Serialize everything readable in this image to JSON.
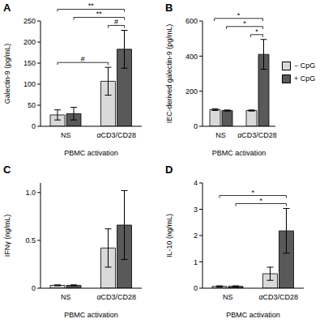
{
  "chart_data": [
    {
      "type": "bar",
      "title": "A",
      "x_label": "PBMC activation",
      "y_label": "Galectin-9 (pg/mL)",
      "categories": [
        "NS",
        "αCD3/CD28"
      ],
      "series": [
        {
          "name": "− CpG",
          "color": "#d9d9d9",
          "values": [
            27,
            107
          ],
          "errors": [
            12,
            33
          ]
        },
        {
          "name": "+ CpG",
          "color": "#595959",
          "values": [
            30,
            183
          ],
          "errors": [
            15,
            45
          ]
        }
      ],
      "ylim": [
        0,
        250
      ],
      "yticks": [
        0,
        50,
        100,
        150,
        200,
        250
      ],
      "annotations": [
        {
          "from": [
            "αCD3/CD28",
            "− CpG"
          ],
          "to": [
            "αCD3/CD28",
            "+ CpG"
          ],
          "label": "#"
        },
        {
          "from": [
            "NS",
            "− CpG"
          ],
          "to": [
            "αCD3/CD28",
            "− CpG"
          ],
          "label": "#"
        },
        {
          "from": [
            "NS",
            "+ CpG"
          ],
          "to": [
            "αCD3/CD28",
            "+ CpG"
          ],
          "label": "**"
        },
        {
          "from": [
            "NS",
            "− CpG"
          ],
          "to": [
            "αCD3/CD28",
            "+ CpG"
          ],
          "label": "**"
        }
      ]
    },
    {
      "type": "bar",
      "title": "B",
      "x_label": "PBMC activation",
      "y_label": "IEC-derived galectin-9 (pg/mL)",
      "categories": [
        "NS",
        "αCD3/CD28"
      ],
      "series": [
        {
          "name": "− CpG",
          "color": "#d9d9d9",
          "values": [
            95,
            90
          ],
          "errors": [
            5,
            3
          ]
        },
        {
          "name": "+ CpG",
          "color": "#595959",
          "values": [
            90,
            410
          ],
          "errors": [
            3,
            85
          ]
        }
      ],
      "ylim": [
        0,
        600
      ],
      "yticks": [
        0,
        200,
        400,
        600
      ],
      "legend": "right",
      "annotations": [
        {
          "from": [
            "αCD3/CD28",
            "− CpG"
          ],
          "to": [
            "αCD3/CD28",
            "+ CpG"
          ],
          "label": "*"
        },
        {
          "from": [
            "NS",
            "+ CpG"
          ],
          "to": [
            "αCD3/CD28",
            "+ CpG"
          ],
          "label": "*"
        },
        {
          "from": [
            "NS",
            "− CpG"
          ],
          "to": [
            "αCD3/CD28",
            "+ CpG"
          ],
          "label": "*"
        }
      ]
    },
    {
      "type": "bar",
      "title": "C",
      "x_label": "PBMC activation",
      "y_label": "IFNγ (ng/mL)",
      "categories": [
        "NS",
        "αCD3/CD28"
      ],
      "series": [
        {
          "name": "− CpG",
          "color": "#d9d9d9",
          "values": [
            0.03,
            0.42
          ],
          "errors": [
            0.005,
            0.2
          ]
        },
        {
          "name": "+ CpG",
          "color": "#595959",
          "values": [
            0.03,
            0.66
          ],
          "errors": [
            0.005,
            0.36
          ]
        }
      ],
      "ylim": [
        0,
        1.1
      ],
      "yticks": [
        0,
        0.5,
        {
          "value": 1,
          "label": "1.0"
        }
      ]
    },
    {
      "type": "bar",
      "title": "D",
      "x_label": "PBMC activation",
      "y_label": "IL-10 (ng/mL)",
      "categories": [
        "NS",
        "αCD3/CD28"
      ],
      "series": [
        {
          "name": "− CpG",
          "color": "#d9d9d9",
          "values": [
            0.07,
            0.55
          ],
          "errors": [
            0.02,
            0.25
          ]
        },
        {
          "name": "+ CpG",
          "color": "#595959",
          "values": [
            0.07,
            2.18
          ],
          "errors": [
            0.02,
            0.85
          ]
        }
      ],
      "ylim": [
        0,
        4
      ],
      "yticks": [
        0,
        1,
        2,
        3,
        4
      ],
      "annotations": [
        {
          "from": [
            "NS",
            "+ CpG"
          ],
          "to": [
            "αCD3/CD28",
            "+ CpG"
          ],
          "label": "*"
        },
        {
          "from": [
            "NS",
            "− CpG"
          ],
          "to": [
            "αCD3/CD28",
            "+ CpG"
          ],
          "label": "*"
        }
      ]
    }
  ]
}
